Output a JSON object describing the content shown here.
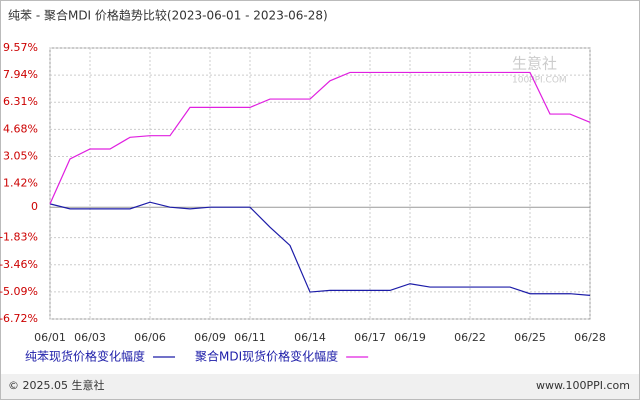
{
  "chart_data": {
    "type": "line",
    "title": "纯苯 - 聚合MDI 价格趋势比较(2023-06-01 - 2023-06-28)",
    "categories": [
      "06/01",
      null,
      "06/03",
      null,
      null,
      "06/06",
      null,
      null,
      "06/09",
      null,
      "06/11",
      null,
      null,
      "06/14",
      null,
      null,
      "06/17",
      null,
      "06/19",
      null,
      null,
      "06/22",
      null,
      null,
      "06/25",
      null,
      null,
      "06/28"
    ],
    "series": [
      {
        "name": "纯苯现货价格变化幅度",
        "color": "#1c1ca8",
        "values": [
          0.2,
          -0.1,
          -0.1,
          -0.1,
          -0.1,
          0.3,
          0,
          -0.1,
          0,
          0,
          0,
          -1.2,
          -2.3,
          -5.1,
          -5.0,
          -5.0,
          -5.0,
          -5.0,
          -4.6,
          -4.8,
          -4.8,
          -4.8,
          -4.8,
          -4.8,
          -5.2,
          -5.2,
          -5.2,
          -5.3
        ]
      },
      {
        "name": "聚合MDI现货价格变化幅度",
        "color": "#e020e0",
        "values": [
          0.2,
          2.9,
          3.5,
          3.5,
          4.2,
          4.3,
          4.3,
          6.0,
          6.0,
          6.0,
          6.0,
          6.5,
          6.5,
          6.5,
          7.6,
          8.1,
          8.1,
          8.1,
          8.1,
          8.1,
          8.1,
          8.1,
          8.1,
          8.1,
          8.1,
          5.6,
          5.6,
          5.1
        ]
      }
    ],
    "ylim": [
      -6.72,
      9.57
    ],
    "yticks": [
      {
        "value": -6.72,
        "label": "-6.72%"
      },
      {
        "value": -5.09,
        "label": "-5.09%"
      },
      {
        "value": -3.46,
        "label": "-3.46%"
      },
      {
        "value": -1.83,
        "label": "-1.83%"
      },
      0,
      {
        "value": 1.42,
        "label": "1.42%"
      },
      {
        "value": 3.05,
        "label": "3.05%"
      },
      {
        "value": 4.68,
        "label": "4.68%"
      },
      {
        "value": 6.31,
        "label": "6.31%"
      },
      {
        "value": 7.94,
        "label": "7.94%"
      },
      {
        "value": 9.57,
        "label": "9.57%"
      }
    ],
    "grid": true,
    "watermark": "生意社",
    "watermark_url": "100PPI.COM"
  },
  "footer": {
    "copyright": "© 2025.05 生意社",
    "site": "www.100PPI.com"
  }
}
